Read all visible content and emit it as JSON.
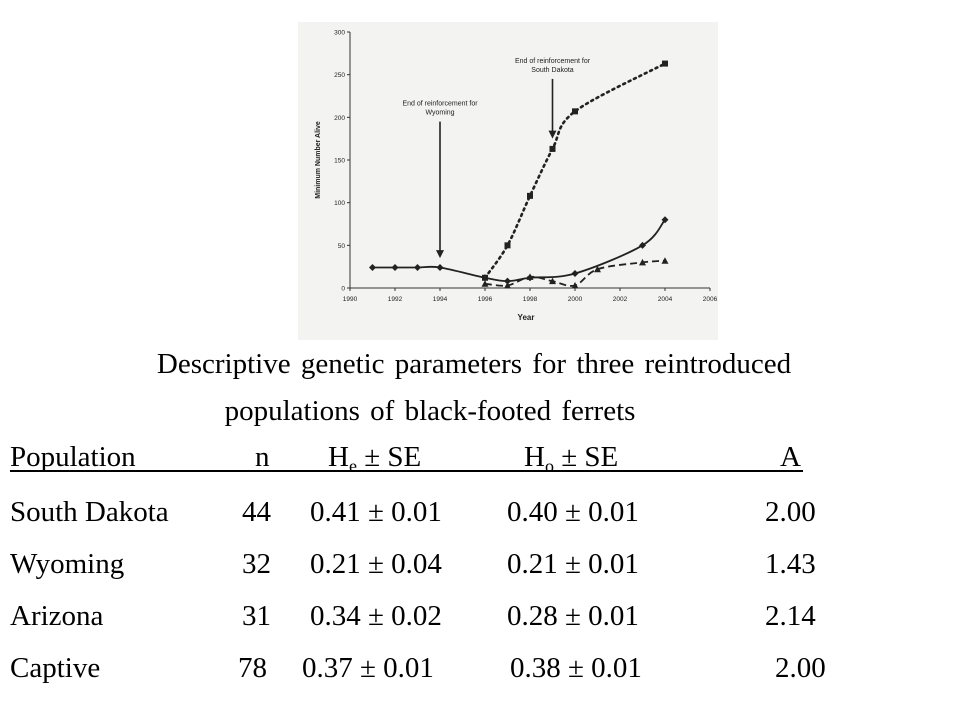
{
  "chart_data": {
    "type": "line",
    "xlabel": "Year",
    "ylabel": "Minimum Number Alive",
    "xlim": [
      1990,
      2006
    ],
    "ylim": [
      0,
      300
    ],
    "x_ticks": [
      "1990",
      "1992",
      "1994",
      "1996",
      "1998",
      "2000",
      "2002",
      "2004",
      "2006"
    ],
    "y_ticks": [
      "0",
      "50",
      "100",
      "150",
      "200",
      "250",
      "300"
    ],
    "grid": false,
    "series": [
      {
        "marker": "square",
        "line": "dotted-then-solid",
        "color": "#222222",
        "points": [
          [
            1996,
            12
          ],
          [
            1997,
            50
          ],
          [
            1998,
            108
          ],
          [
            1999,
            163
          ],
          [
            2000,
            207
          ],
          [
            2004,
            263
          ]
        ]
      },
      {
        "marker": "diamond",
        "line": "solid",
        "color": "#222222",
        "points": [
          [
            1991,
            24
          ],
          [
            1992,
            24
          ],
          [
            1993,
            24
          ],
          [
            1994,
            24
          ],
          [
            1996,
            12
          ],
          [
            1997,
            8
          ],
          [
            1998,
            12
          ],
          [
            2000,
            17
          ],
          [
            2003,
            50
          ],
          [
            2004,
            80
          ]
        ]
      },
      {
        "marker": "triangle",
        "line": "dashed",
        "color": "#222222",
        "points": [
          [
            1996,
            5
          ],
          [
            1997,
            3
          ],
          [
            1998,
            13
          ],
          [
            1999,
            8
          ],
          [
            2000,
            3
          ],
          [
            2001,
            22
          ],
          [
            2003,
            30
          ],
          [
            2004,
            32
          ]
        ]
      }
    ],
    "annotations": [
      {
        "text": [
          "End of reinforcement for",
          "Wyoming"
        ],
        "x": 1994,
        "arrow_from_y": 195,
        "arrow_to_y": 35
      },
      {
        "text": [
          "End of reinforcement for",
          "South Dakota"
        ],
        "x": 1999,
        "arrow_from_y": 245,
        "arrow_to_y": 175
      }
    ]
  },
  "caption": {
    "line1": "Descriptive genetic parameters for three reintroduced",
    "line2": "populations of black-footed ferrets"
  },
  "table": {
    "headers": {
      "population": "Population",
      "n": "n",
      "he_main": "H",
      "he_sub": "e",
      "he_rest": " ± SE",
      "ho_main": "H",
      "ho_sub": "o",
      "ho_rest": " ± SE",
      "a": "A"
    },
    "rows": [
      {
        "population": "South Dakota",
        "n": "44",
        "he": "0.41 ± 0.01",
        "ho": "0.40 ± 0.01",
        "a": "2.00"
      },
      {
        "population": "Wyoming",
        "n": "32",
        "he": "0.21 ± 0.04",
        "ho": "0.21 ± 0.01",
        "a": "1.43"
      },
      {
        "population": "Arizona",
        "n": "31",
        "he": "0.34 ± 0.02",
        "ho": "0.28 ± 0.01",
        "a": "2.14"
      },
      {
        "population": "Captive",
        "n": "78",
        "he": "0.37 ± 0.01",
        "ho": "0.38 ± 0.01",
        "a": "2.00"
      }
    ]
  }
}
